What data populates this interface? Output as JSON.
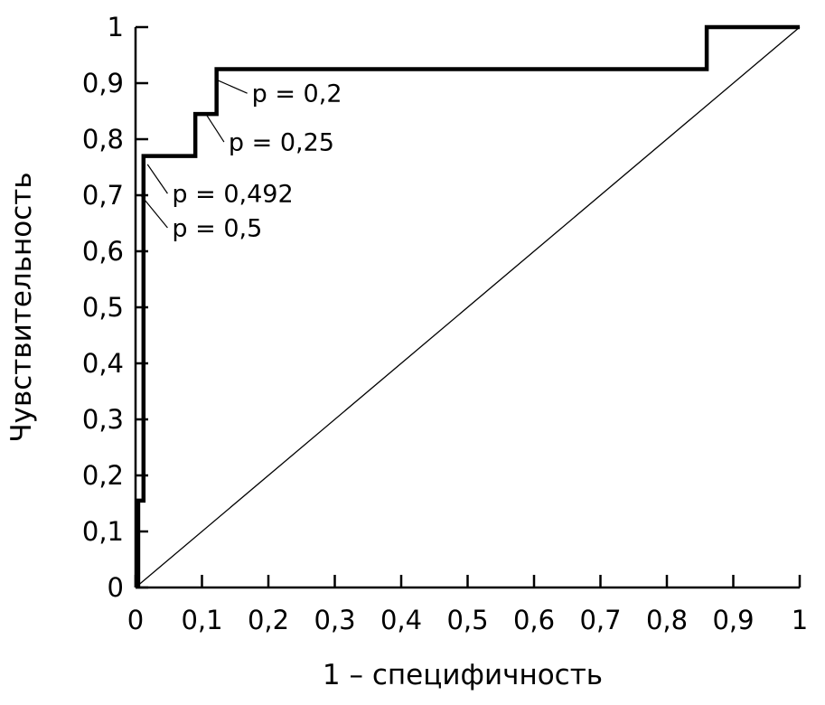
{
  "chart_data": {
    "type": "line",
    "title": "",
    "xlabel": "1 – специфичность",
    "ylabel": "Чувствительность",
    "xlim": [
      0,
      1
    ],
    "ylim": [
      0,
      1
    ],
    "grid": false,
    "legend": "none",
    "axis_color": "#000000",
    "curve_color": "#000000",
    "background_color": "#ffffff",
    "x_ticks": [
      0,
      0.1,
      0.2,
      0.3,
      0.4,
      0.5,
      0.6,
      0.7,
      0.8,
      0.9,
      1
    ],
    "x_tick_labels": [
      "0",
      "0,1",
      "0,2",
      "0,3",
      "0,4",
      "0,5",
      "0,6",
      "0,7",
      "0,8",
      "0,9",
      "1"
    ],
    "y_ticks": [
      0,
      0.1,
      0.2,
      0.3,
      0.4,
      0.5,
      0.6,
      0.7,
      0.8,
      0.9,
      1
    ],
    "y_tick_labels": [
      "0",
      "0,1",
      "0,2",
      "0,3",
      "0,4",
      "0,5",
      "0,6",
      "0,7",
      "0,8",
      "0,9",
      "1"
    ],
    "series": [
      {
        "name": "roc-curve",
        "stroke_width": 4.5,
        "points": [
          [
            0.004,
            0
          ],
          [
            0.004,
            0.155
          ],
          [
            0.012,
            0.155
          ],
          [
            0.012,
            0.77
          ],
          [
            0.09,
            0.77
          ],
          [
            0.09,
            0.845
          ],
          [
            0.122,
            0.845
          ],
          [
            0.122,
            0.925
          ],
          [
            0.86,
            0.925
          ],
          [
            0.86,
            1.0
          ],
          [
            1.0,
            1.0
          ]
        ]
      },
      {
        "name": "chance-diagonal",
        "stroke_width": 1.3,
        "points": [
          [
            0,
            0
          ],
          [
            1,
            1
          ]
        ]
      }
    ],
    "annotations": [
      {
        "label": "p = 0,2",
        "point": [
          0.124,
          0.905
        ],
        "label_pos": [
          0.175,
          0.882
        ]
      },
      {
        "label": "p = 0,25",
        "point": [
          0.107,
          0.843
        ],
        "label_pos": [
          0.14,
          0.795
        ]
      },
      {
        "label": "p = 0,492",
        "point": [
          0.018,
          0.755
        ],
        "label_pos": [
          0.055,
          0.703
        ]
      },
      {
        "label": "p = 0,5",
        "point": [
          0.008,
          0.7
        ],
        "label_pos": [
          0.055,
          0.642
        ]
      }
    ]
  }
}
